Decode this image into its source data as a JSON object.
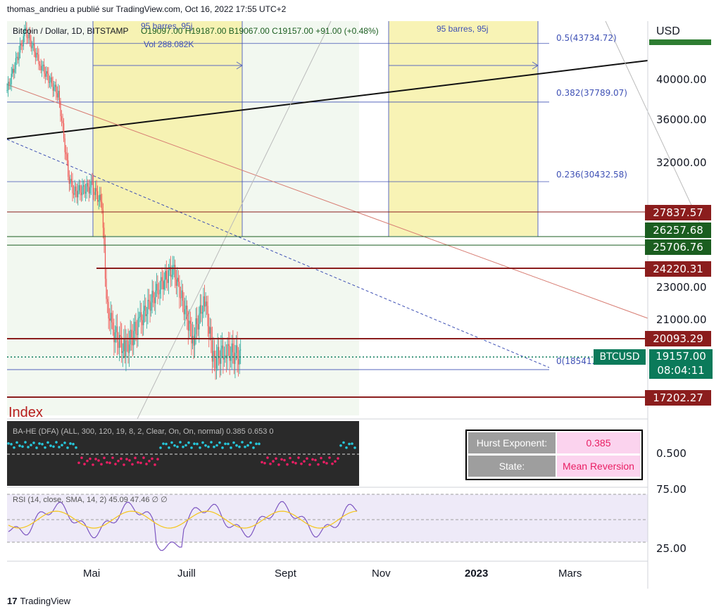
{
  "header": "thomas_andrieu a publié sur TradingView.com, Oct 16, 2022 17:55 UTC+2",
  "legend": {
    "symbol": "Bitcoin / Dollar, 1D, BITSTAMP",
    "ohlc": "O19097.00  H19187.00  B19067.00  C19157.00  +91.00 (+0.48%)",
    "vol": "Vol 288.082K"
  },
  "currency": "USD",
  "date_range_labels": [
    "95 barres, 95j",
    "95 barres, 95j"
  ],
  "fib": [
    {
      "label": "0.5(43734.72)",
      "value": 43734.72
    },
    {
      "label": "0.382(37789.07)",
      "value": 37789.07
    },
    {
      "label": "0.236(30432.58)",
      "value": 30432.58
    },
    {
      "label": "0(18541.2",
      "value": 18541.2
    }
  ],
  "price_ticks": [
    "40000.00",
    "36000.00",
    "32000.00",
    "23000.00",
    "21000.00"
  ],
  "price_tags": [
    {
      "text": "27837.57",
      "color": "#8b1d1d"
    },
    {
      "text": "26257.68",
      "color": "#1b5e20"
    },
    {
      "text": "25706.76",
      "color": "#1b5e20"
    },
    {
      "text": "24220.31",
      "color": "#8b1d1d"
    },
    {
      "text": "20093.29",
      "color": "#8b1d1d"
    },
    {
      "text": "17202.27",
      "color": "#8b1d1d"
    }
  ],
  "symbol_tag": {
    "name": "BTCUSD",
    "price": "19157.00",
    "countdown": "08:04:11",
    "color": "#0b7a5a"
  },
  "index_panel": {
    "title": "Index",
    "line": "BA-HE (DFA) (ALL, 300, 120, 19, 8, 2, Clear, On, On, normal) 0.385  0.653  0",
    "scale": "0.500",
    "hurst_label": "Hurst Exponent:",
    "hurst_value": "0.385",
    "state_label": "State:",
    "state_value": "Mean Reversion"
  },
  "rsi_panel": {
    "line": "RSI (14, close, SMA, 14, 2)  45.09  47.46  ∅  ∅",
    "ticks": [
      "75.00",
      "25.00"
    ]
  },
  "time_labels": [
    "Mai",
    "Juill",
    "Sept",
    "Nov",
    "2023",
    "Mars"
  ],
  "footer": "TradingView",
  "colors": {
    "up": "#26a69a",
    "down": "#ef5350",
    "fib": "#3f51b5",
    "yellow": "#f7f1a8",
    "green_zone": "#e8f3e4"
  },
  "chart_data": {
    "type": "candlestick",
    "title": "Bitcoin / Dollar, 1D, BITSTAMP",
    "ylabel": "USD",
    "x": [
      "2022-03-15",
      "2022-04-01",
      "2022-04-15",
      "2022-05-01",
      "2022-05-10",
      "2022-05-15",
      "2022-06-01",
      "2022-06-10",
      "2022-06-14",
      "2022-06-20",
      "2022-07-01",
      "2022-07-15",
      "2022-08-01",
      "2022-08-14",
      "2022-09-01",
      "2022-09-12",
      "2022-09-20",
      "2022-10-01",
      "2022-10-16"
    ],
    "close": [
      39000,
      45000,
      41500,
      38500,
      31000,
      29500,
      30000,
      28500,
      22000,
      20500,
      19500,
      21000,
      23000,
      24200,
      20000,
      22300,
      19000,
      19500,
      19157
    ],
    "ylim": [
      16000,
      46000
    ],
    "key_levels": [
      27837.57,
      26257.68,
      25706.76,
      24220.31,
      20093.29,
      17202.27
    ],
    "last": 19157.0
  }
}
